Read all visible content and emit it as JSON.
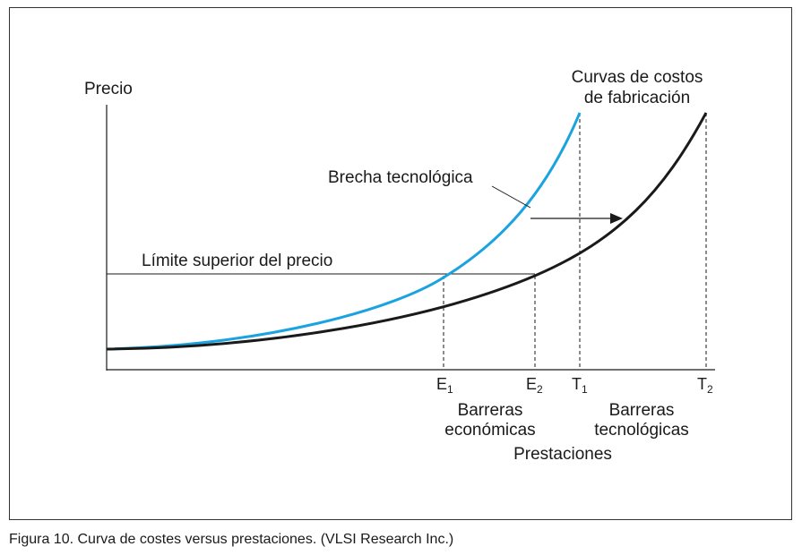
{
  "diagram": {
    "y_axis_label": "Precio",
    "x_axis_label": "Prestaciones",
    "cost_curves_label_line1": "Curvas de costos",
    "cost_curves_label_line2": "de fabricación",
    "tech_gap_label": "Brecha tecnológica",
    "price_limit_label": "Límite superior del precio",
    "ticks": [
      {
        "main": "E",
        "sub": "1"
      },
      {
        "main": "E",
        "sub": "2"
      },
      {
        "main": "T",
        "sub": "1"
      },
      {
        "main": "T",
        "sub": "2"
      }
    ],
    "economic_barriers_line1": "Barreras",
    "economic_barriers_line2": "económicas",
    "tech_barriers_line1": "Barreras",
    "tech_barriers_line2": "tecnológicas",
    "colors": {
      "blue_curve": "#1ba3e0",
      "black_curve": "#1a1a1a",
      "frame": "#333333"
    }
  },
  "caption": "Figura 10. Curva de costes versus prestaciones. (VLSI Research Inc.)"
}
